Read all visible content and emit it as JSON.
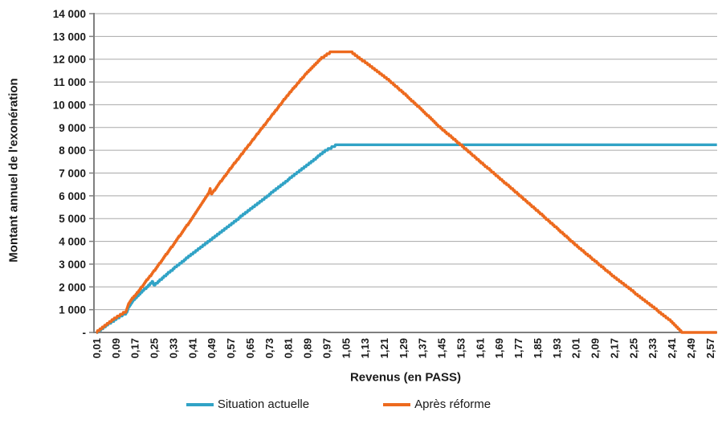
{
  "chart_data": {
    "type": "line",
    "title": "",
    "xlabel": "Revenus (en PASS)",
    "ylabel": "Montant annuel de l'exonération",
    "xlim": [
      0,
      2.601
    ],
    "ylim": [
      0,
      14000
    ],
    "grid": "horizontal-only",
    "legend_position": "bottom",
    "y_ticks": [
      {
        "value": 0,
        "label": "-"
      },
      {
        "value": 1000,
        "label": "1 000"
      },
      {
        "value": 2000,
        "label": "2 000"
      },
      {
        "value": 3000,
        "label": "3 000"
      },
      {
        "value": 4000,
        "label": "4 000"
      },
      {
        "value": 5000,
        "label": "5 000"
      },
      {
        "value": 6000,
        "label": "6 000"
      },
      {
        "value": 7000,
        "label": "7 000"
      },
      {
        "value": 8000,
        "label": "8 000"
      },
      {
        "value": 9000,
        "label": "9 000"
      },
      {
        "value": 10000,
        "label": "10 000"
      },
      {
        "value": 11000,
        "label": "11 000"
      },
      {
        "value": 12000,
        "label": "12 000"
      },
      {
        "value": 13000,
        "label": "13 000"
      },
      {
        "value": 14000,
        "label": "14 000"
      }
    ],
    "x_ticks": [
      {
        "value": 0.01,
        "label": "0,01"
      },
      {
        "value": 0.09,
        "label": "0,09"
      },
      {
        "value": 0.17,
        "label": "0,17"
      },
      {
        "value": 0.25,
        "label": "0,25"
      },
      {
        "value": 0.33,
        "label": "0,33"
      },
      {
        "value": 0.41,
        "label": "0,41"
      },
      {
        "value": 0.49,
        "label": "0,49"
      },
      {
        "value": 0.57,
        "label": "0,57"
      },
      {
        "value": 0.65,
        "label": "0,65"
      },
      {
        "value": 0.73,
        "label": "0,73"
      },
      {
        "value": 0.81,
        "label": "0,81"
      },
      {
        "value": 0.89,
        "label": "0,89"
      },
      {
        "value": 0.97,
        "label": "0,97"
      },
      {
        "value": 1.05,
        "label": "1,05"
      },
      {
        "value": 1.13,
        "label": "1,13"
      },
      {
        "value": 1.21,
        "label": "1,21"
      },
      {
        "value": 1.29,
        "label": "1,29"
      },
      {
        "value": 1.37,
        "label": "1,37"
      },
      {
        "value": 1.45,
        "label": "1,45"
      },
      {
        "value": 1.53,
        "label": "1,53"
      },
      {
        "value": 1.61,
        "label": "1,61"
      },
      {
        "value": 1.69,
        "label": "1,69"
      },
      {
        "value": 1.77,
        "label": "1,77"
      },
      {
        "value": 1.85,
        "label": "1,85"
      },
      {
        "value": 1.93,
        "label": "1,93"
      },
      {
        "value": 2.01,
        "label": "2,01"
      },
      {
        "value": 2.09,
        "label": "2,09"
      },
      {
        "value": 2.17,
        "label": "2,17"
      },
      {
        "value": 2.25,
        "label": "2,25"
      },
      {
        "value": 2.33,
        "label": "2,33"
      },
      {
        "value": 2.41,
        "label": "2,41"
      },
      {
        "value": 2.49,
        "label": "2,49"
      },
      {
        "value": 2.57,
        "label": "2,57"
      }
    ],
    "series": [
      {
        "name": "Situation actuelle",
        "color": "#31A3C6",
        "points": [
          [
            0.01,
            0
          ],
          [
            0.02,
            60
          ],
          [
            0.04,
            200
          ],
          [
            0.06,
            360
          ],
          [
            0.08,
            500
          ],
          [
            0.1,
            640
          ],
          [
            0.12,
            760
          ],
          [
            0.135,
            840
          ],
          [
            0.145,
            1120
          ],
          [
            0.16,
            1350
          ],
          [
            0.18,
            1560
          ],
          [
            0.2,
            1780
          ],
          [
            0.22,
            1980
          ],
          [
            0.24,
            2180
          ],
          [
            0.245,
            2230
          ],
          [
            0.25,
            2060
          ],
          [
            0.33,
            2780
          ],
          [
            0.41,
            3450
          ],
          [
            0.49,
            4080
          ],
          [
            0.57,
            4730
          ],
          [
            0.65,
            5390
          ],
          [
            0.73,
            6040
          ],
          [
            0.81,
            6700
          ],
          [
            0.89,
            7350
          ],
          [
            0.97,
            8010
          ],
          [
            1.005,
            8200
          ],
          [
            2.6,
            8200
          ]
        ]
      },
      {
        "name": "Après réforme",
        "color": "#ED6A1E",
        "points": [
          [
            0.01,
            0
          ],
          [
            0.02,
            80
          ],
          [
            0.04,
            250
          ],
          [
            0.06,
            420
          ],
          [
            0.08,
            570
          ],
          [
            0.1,
            700
          ],
          [
            0.12,
            830
          ],
          [
            0.135,
            930
          ],
          [
            0.145,
            1250
          ],
          [
            0.16,
            1480
          ],
          [
            0.18,
            1720
          ],
          [
            0.22,
            2280
          ],
          [
            0.26,
            2820
          ],
          [
            0.3,
            3400
          ],
          [
            0.34,
            3980
          ],
          [
            0.38,
            4570
          ],
          [
            0.42,
            5170
          ],
          [
            0.46,
            5800
          ],
          [
            0.48,
            6120
          ],
          [
            0.485,
            6320
          ],
          [
            0.49,
            6060
          ],
          [
            0.53,
            6640
          ],
          [
            0.57,
            7200
          ],
          [
            0.65,
            8280
          ],
          [
            0.73,
            9360
          ],
          [
            0.81,
            10440
          ],
          [
            0.89,
            11420
          ],
          [
            0.95,
            12050
          ],
          [
            0.985,
            12290
          ],
          [
            1.075,
            12300
          ],
          [
            1.13,
            11880
          ],
          [
            1.21,
            11260
          ],
          [
            1.29,
            10540
          ],
          [
            1.37,
            9760
          ],
          [
            1.45,
            8950
          ],
          [
            1.53,
            8250
          ],
          [
            1.61,
            7520
          ],
          [
            1.69,
            6800
          ],
          [
            1.77,
            6080
          ],
          [
            1.85,
            5350
          ],
          [
            1.93,
            4600
          ],
          [
            2.01,
            3850
          ],
          [
            2.09,
            3150
          ],
          [
            2.17,
            2450
          ],
          [
            2.25,
            1800
          ],
          [
            2.33,
            1150
          ],
          [
            2.41,
            480
          ],
          [
            2.455,
            0
          ],
          [
            2.6,
            0
          ]
        ]
      }
    ],
    "style": {
      "grid_color": "#A8A8A8",
      "axis_color": "#7F7F7F",
      "text_color": "#1A1A1A",
      "line_width": 3.4,
      "step_quantum": 80
    }
  }
}
